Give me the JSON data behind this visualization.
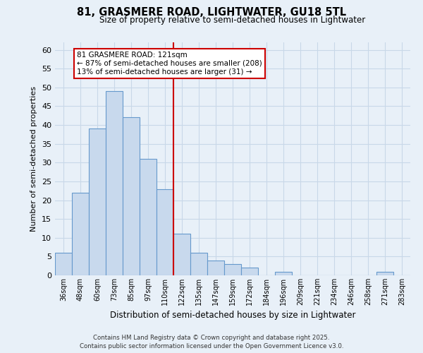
{
  "title": "81, GRASMERE ROAD, LIGHTWATER, GU18 5TL",
  "subtitle": "Size of property relative to semi-detached houses in Lightwater",
  "xlabel": "Distribution of semi-detached houses by size in Lightwater",
  "ylabel": "Number of semi-detached properties",
  "bar_labels": [
    "36sqm",
    "48sqm",
    "60sqm",
    "73sqm",
    "85sqm",
    "97sqm",
    "110sqm",
    "122sqm",
    "135sqm",
    "147sqm",
    "159sqm",
    "172sqm",
    "184sqm",
    "196sqm",
    "209sqm",
    "221sqm",
    "234sqm",
    "246sqm",
    "258sqm",
    "271sqm",
    "283sqm"
  ],
  "bar_values": [
    6,
    22,
    39,
    49,
    42,
    31,
    23,
    11,
    6,
    4,
    3,
    2,
    0,
    1,
    0,
    0,
    0,
    0,
    0,
    1,
    0
  ],
  "bar_color": "#c8d9ed",
  "bar_edge_color": "#6699cc",
  "grid_color": "#c8d8e8",
  "background_color": "#e8f0f8",
  "vline_x_index": 6.5,
  "vline_color": "#cc0000",
  "annotation_line1": "81 GRASMERE ROAD: 121sqm",
  "annotation_line2": "← 87% of semi-detached houses are smaller (208)",
  "annotation_line3": "13% of semi-detached houses are larger (31) →",
  "annotation_box_color": "#ffffff",
  "annotation_box_edge": "#cc0000",
  "ylim": [
    0,
    62
  ],
  "yticks": [
    0,
    5,
    10,
    15,
    20,
    25,
    30,
    35,
    40,
    45,
    50,
    55,
    60
  ],
  "footnote1": "Contains HM Land Registry data © Crown copyright and database right 2025.",
  "footnote2": "Contains public sector information licensed under the Open Government Licence v3.0."
}
